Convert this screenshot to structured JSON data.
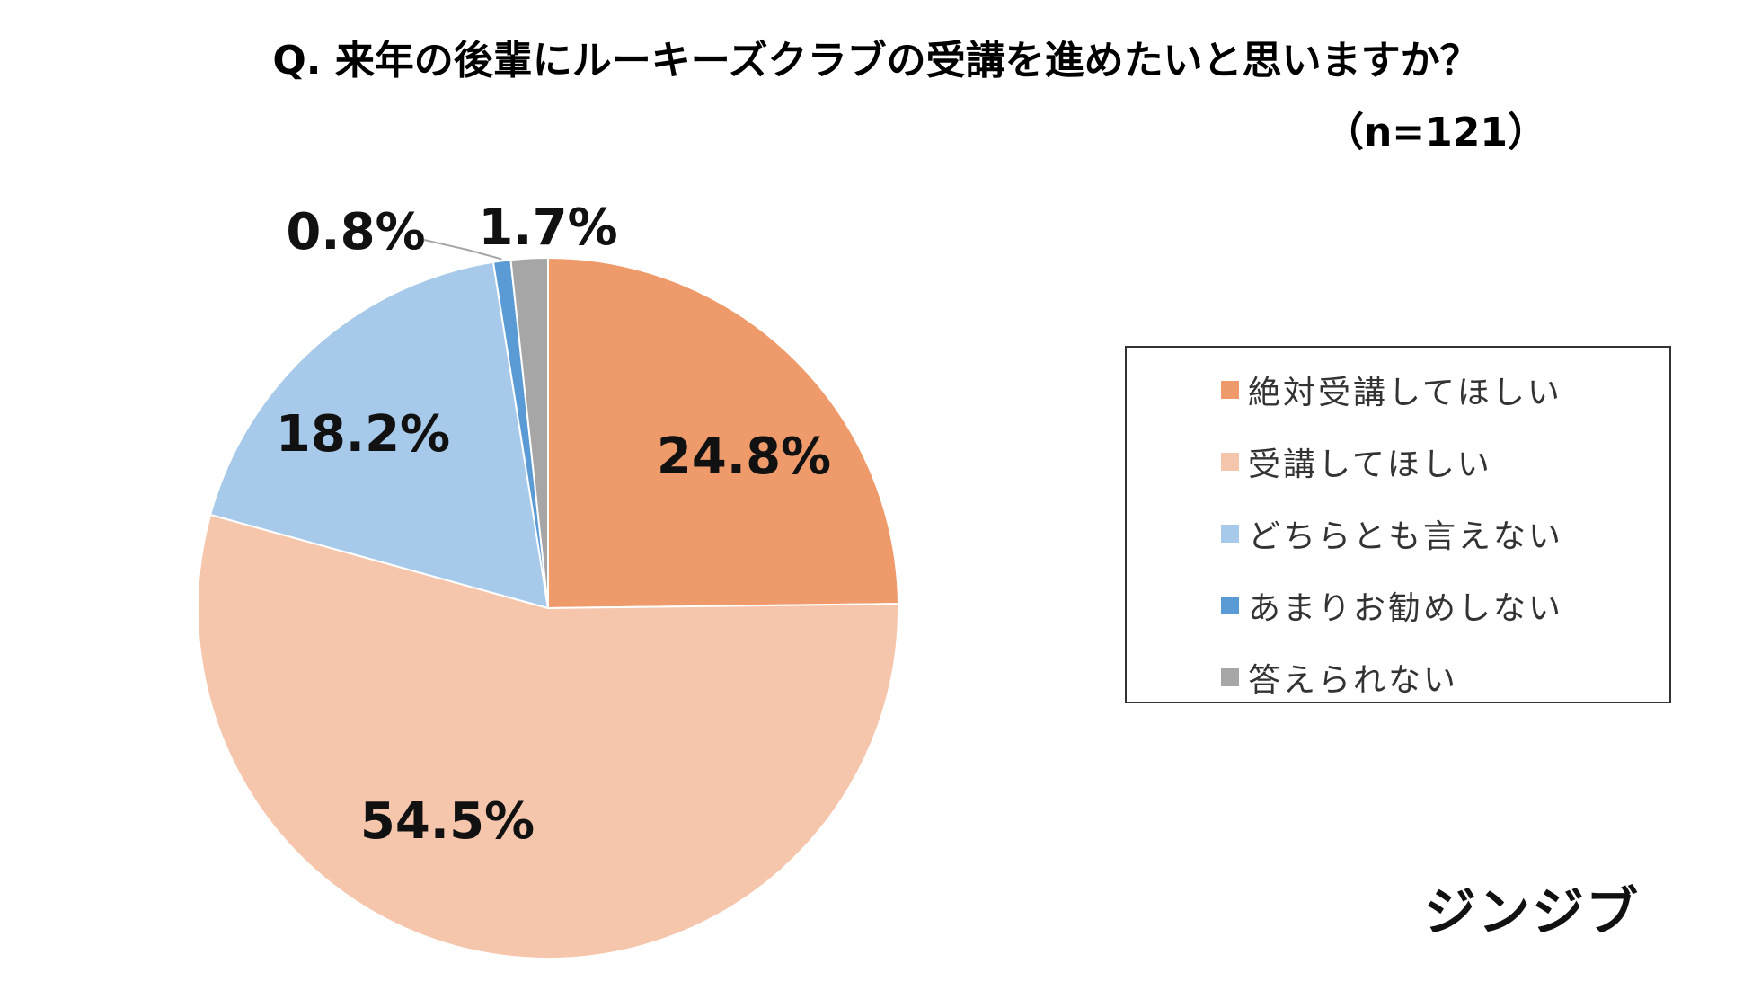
{
  "title": "Q. 来年の後輩にルーキーズクラブの受講を進めたいと思いますか？",
  "sample_size": "（n=121）",
  "logo_text": "ジンジブ",
  "chart_data": {
    "type": "pie",
    "title": "Q. 来年の後輩にルーキーズクラブの受講を進めたいと思いますか？",
    "subtitle": "（n=121）",
    "start_angle_deg": 0,
    "direction": "clockwise",
    "legend_position": "right",
    "slices": [
      {
        "label": "絶対受講してほしい",
        "value": 24.8,
        "value_label": "24.8%",
        "color": "#EE9A6B"
      },
      {
        "label": "受講してほしい",
        "value": 54.5,
        "value_label": "54.5%",
        "color": "#F6C6AC"
      },
      {
        "label": "どちらとも言えない",
        "value": 18.2,
        "value_label": "18.2%",
        "color": "#A7CAEB"
      },
      {
        "label": "あまりお勧めしない",
        "value": 0.8,
        "value_label": "0.8%",
        "color": "#5B9BD5"
      },
      {
        "label": "答えられない",
        "value": 1.7,
        "value_label": "1.7%",
        "color": "#A6A6A6"
      }
    ]
  }
}
